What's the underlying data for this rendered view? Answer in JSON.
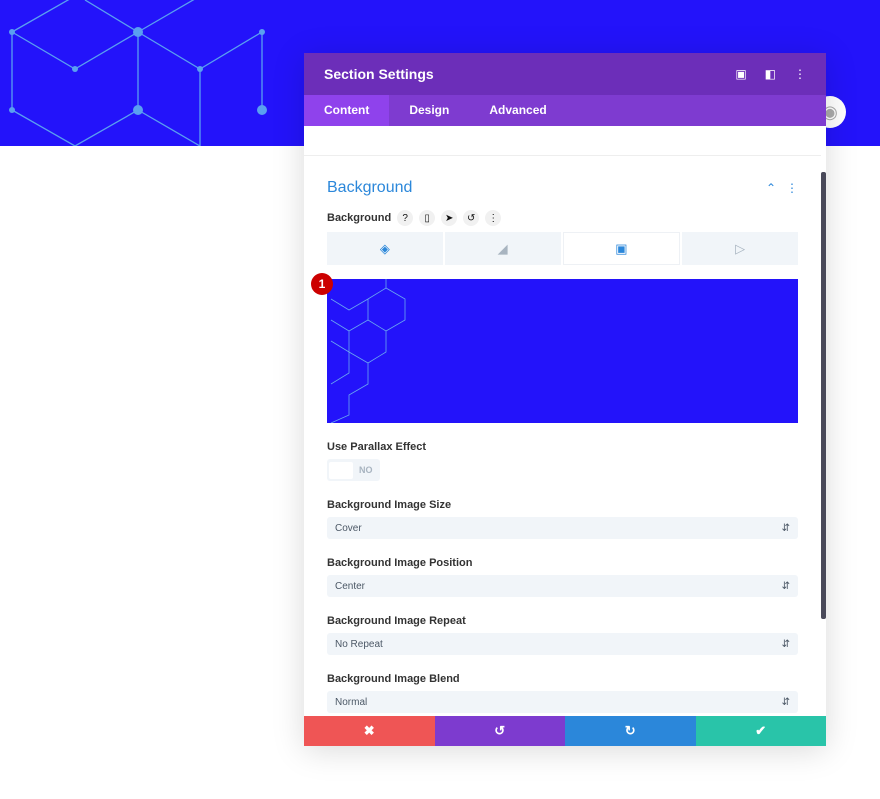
{
  "modal": {
    "title": "Section Settings",
    "header_icons": [
      "focus-icon",
      "split-view-icon",
      "more-icon"
    ]
  },
  "tabs": [
    {
      "label": "Content",
      "active": true
    },
    {
      "label": "Design"
    },
    {
      "label": "Advanced"
    }
  ],
  "section": {
    "title": "Background"
  },
  "background": {
    "label": "Background",
    "bg_tabs": [
      "color",
      "gradient",
      "image",
      "video"
    ],
    "active_bg_tab": "image",
    "badge": "1",
    "image_color": "#2313fa"
  },
  "parallax": {
    "label": "Use Parallax Effect",
    "value": "NO"
  },
  "fields": [
    {
      "label": "Background Image Size",
      "value": "Cover"
    },
    {
      "label": "Background Image Position",
      "value": "Center"
    },
    {
      "label": "Background Image Repeat",
      "value": "No Repeat"
    },
    {
      "label": "Background Image Blend",
      "value": "Normal"
    }
  ],
  "footer": {
    "colors": [
      "#ef5555",
      "#7d3bcf",
      "#2b87da",
      "#29c4a9"
    ]
  }
}
